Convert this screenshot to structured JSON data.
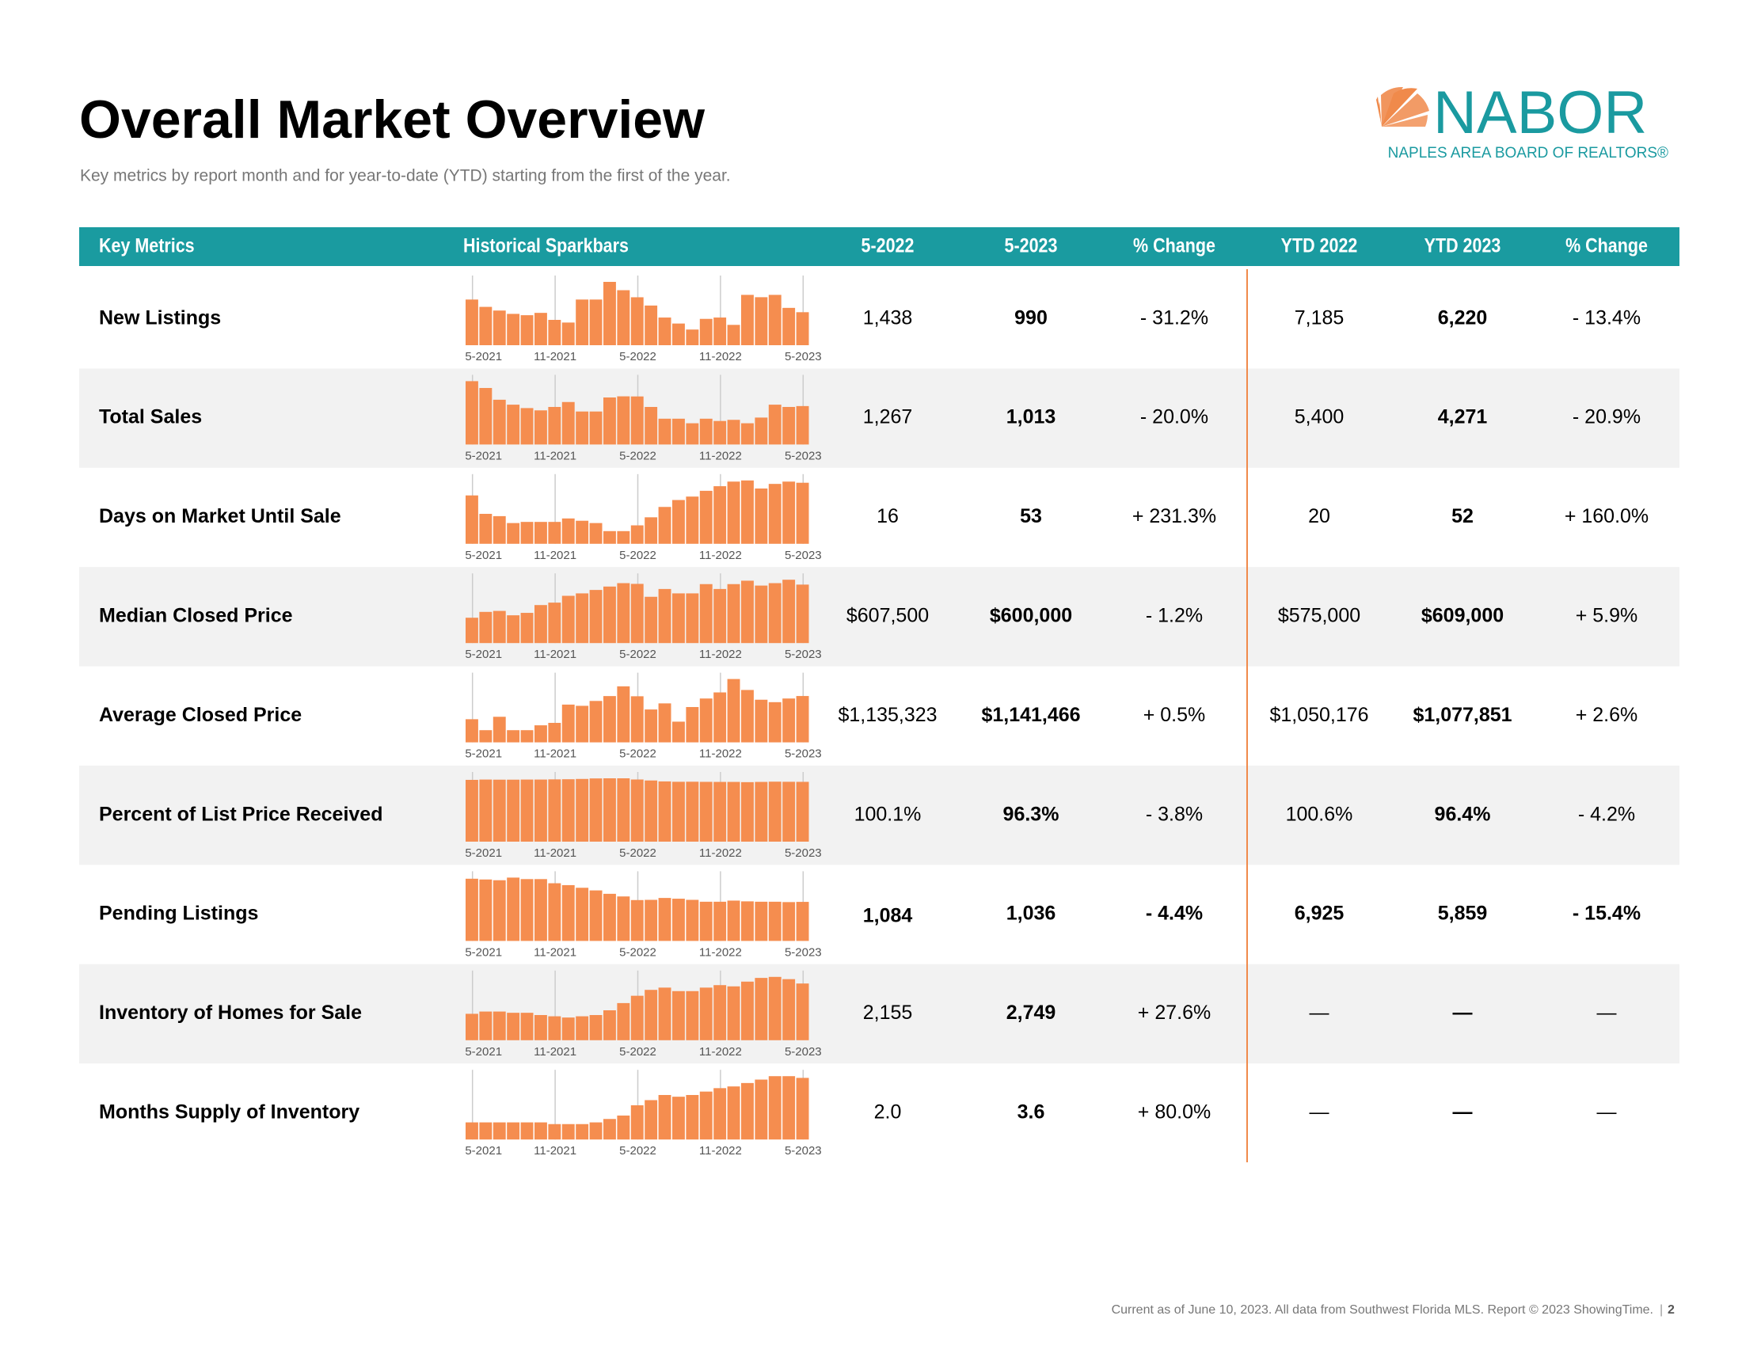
{
  "header": {
    "title": "Overall Market Overview",
    "subtitle": "Key metrics by report month and for year-to-date (YTD) starting from the first of the year.",
    "logo_name": "NABOR",
    "logo_tagline": "NAPLES AREA BOARD OF REALTORS®"
  },
  "table": {
    "columns": [
      "Key Metrics",
      "Historical Sparkbars",
      "5-2022",
      "5-2023",
      "% Change",
      "YTD 2022",
      "YTD 2023",
      "% Change"
    ],
    "sparkbar_labels": [
      "5-2021",
      null,
      null,
      null,
      null,
      null,
      "11-2021",
      null,
      null,
      null,
      null,
      null,
      "5-2022",
      null,
      null,
      null,
      null,
      null,
      "11-2022",
      null,
      null,
      null,
      null,
      null,
      "5-2023"
    ],
    "sparkbar_color": "#f58d4f",
    "rows": [
      {
        "metric": "New Listings",
        "cells": [
          "1,438",
          "990",
          "- 31.2%",
          "7,185",
          "6,220",
          "- 13.4%"
        ],
        "bold": [
          false,
          true,
          false,
          false,
          true,
          false
        ],
        "sparkbars": [
          1370,
          1150,
          1040,
          940,
          900,
          970,
          760,
          680,
          1370,
          1370,
          1900,
          1650,
          1438,
          1190,
          830,
          650,
          470,
          790,
          830,
          610,
          1510,
          1440,
          1510,
          1120,
          990
        ]
      },
      {
        "metric": "Total Sales",
        "cells": [
          "1,267",
          "1,013",
          "- 20.0%",
          "5,400",
          "4,271",
          "- 20.9%"
        ],
        "bold": [
          false,
          true,
          false,
          false,
          true,
          false
        ],
        "sparkbars": [
          1670,
          1490,
          1180,
          1050,
          960,
          900,
          990,
          1120,
          870,
          870,
          1240,
          1270,
          1267,
          990,
          680,
          680,
          560,
          680,
          620,
          650,
          560,
          710,
          1050,
          990,
          1013
        ]
      },
      {
        "metric": "Days on Market Until Sale",
        "cells": [
          "16",
          "53",
          "+ 231.3%",
          "20",
          "52",
          "+ 160.0%"
        ],
        "bold": [
          false,
          true,
          false,
          false,
          true,
          false
        ],
        "sparkbars": [
          42,
          26,
          24,
          18,
          19,
          19,
          19,
          22,
          20,
          18,
          11,
          11,
          16,
          23,
          32,
          38,
          41,
          46,
          50,
          54,
          55,
          48,
          52,
          54,
          53
        ]
      },
      {
        "metric": "Median Closed Price",
        "cells": [
          "$607,500",
          "$600,000",
          "- 1.2%",
          "$575,000",
          "$609,000",
          "+ 5.9%"
        ],
        "bold": [
          false,
          true,
          false,
          false,
          true,
          false
        ],
        "sparkbars": [
          260000,
          320000,
          330000,
          285000,
          310000,
          390000,
          415000,
          485000,
          510000,
          545000,
          580000,
          615000,
          607500,
          475000,
          555000,
          510000,
          510000,
          605000,
          555000,
          605000,
          640000,
          590000,
          615000,
          650000,
          600000
        ]
      },
      {
        "metric": "Average Closed Price",
        "cells": [
          "$1,135,323",
          "$1,141,466",
          "+ 0.5%",
          "$1,050,176",
          "$1,077,851",
          "+ 2.6%"
        ],
        "bold": [
          false,
          true,
          false,
          false,
          true,
          false
        ],
        "sparkbars": [
          570000,
          300000,
          630000,
          300000,
          300000,
          420000,
          480000,
          930000,
          900000,
          1020000,
          1140000,
          1380000,
          1135323,
          810000,
          960000,
          510000,
          870000,
          1080000,
          1230000,
          1560000,
          1290000,
          1050000,
          990000,
          1080000,
          1141466
        ]
      },
      {
        "metric": "Percent of List Price Received",
        "cells": [
          "100.1%",
          "96.3%",
          "- 3.8%",
          "100.6%",
          "96.4%",
          "- 4.2%"
        ],
        "bold": [
          false,
          true,
          false,
          false,
          true,
          false
        ],
        "sparkbars": [
          99.5,
          100,
          99.8,
          99.8,
          100,
          100,
          100.3,
          100.5,
          101,
          101.8,
          102,
          102,
          100.1,
          98.5,
          97,
          96.4,
          96.5,
          96.3,
          96.2,
          96.2,
          95.8,
          96.2,
          96.6,
          96.4,
          96.3
        ]
      },
      {
        "metric": "Pending Listings",
        "cells": [
          "1,084",
          "1,036",
          "- 4.4%",
          "6,925",
          "5,859",
          "- 15.4%"
        ],
        "bold": [
          true,
          true,
          true,
          true,
          true,
          true
        ],
        "sparkbars": [
          1650,
          1630,
          1610,
          1680,
          1640,
          1640,
          1530,
          1480,
          1410,
          1340,
          1250,
          1180,
          1084,
          1090,
          1140,
          1120,
          1090,
          1040,
          1040,
          1070,
          1050,
          1040,
          1040,
          1030,
          1036
        ]
      },
      {
        "metric": "Inventory of Homes for Sale",
        "cells": [
          "2,155",
          "2,749",
          "+ 27.6%",
          "—",
          "—",
          "—"
        ],
        "bold": [
          false,
          true,
          false,
          false,
          true,
          false
        ],
        "sparkbars": [
          1280,
          1390,
          1390,
          1330,
          1330,
          1220,
          1160,
          1100,
          1160,
          1220,
          1450,
          1800,
          2155,
          2440,
          2550,
          2380,
          2380,
          2550,
          2670,
          2610,
          2840,
          3020,
          3070,
          2960,
          2749
        ]
      },
      {
        "metric": "Months Supply of Inventory",
        "cells": [
          "2.0",
          "3.6",
          "+ 80.0%",
          "—",
          "—",
          "—"
        ],
        "bold": [
          false,
          true,
          false,
          false,
          true,
          false
        ],
        "sparkbars": [
          1.0,
          1.0,
          1.0,
          1.0,
          1.0,
          1.0,
          0.9,
          0.9,
          0.9,
          1.0,
          1.2,
          1.4,
          2.0,
          2.3,
          2.6,
          2.5,
          2.6,
          2.8,
          3.0,
          3.1,
          3.3,
          3.5,
          3.7,
          3.7,
          3.6
        ]
      }
    ]
  },
  "footer": {
    "note": "Current as of June 10, 2023. All data from Southwest Florida MLS. Report © 2023 ShowingTime.",
    "page": "2"
  }
}
